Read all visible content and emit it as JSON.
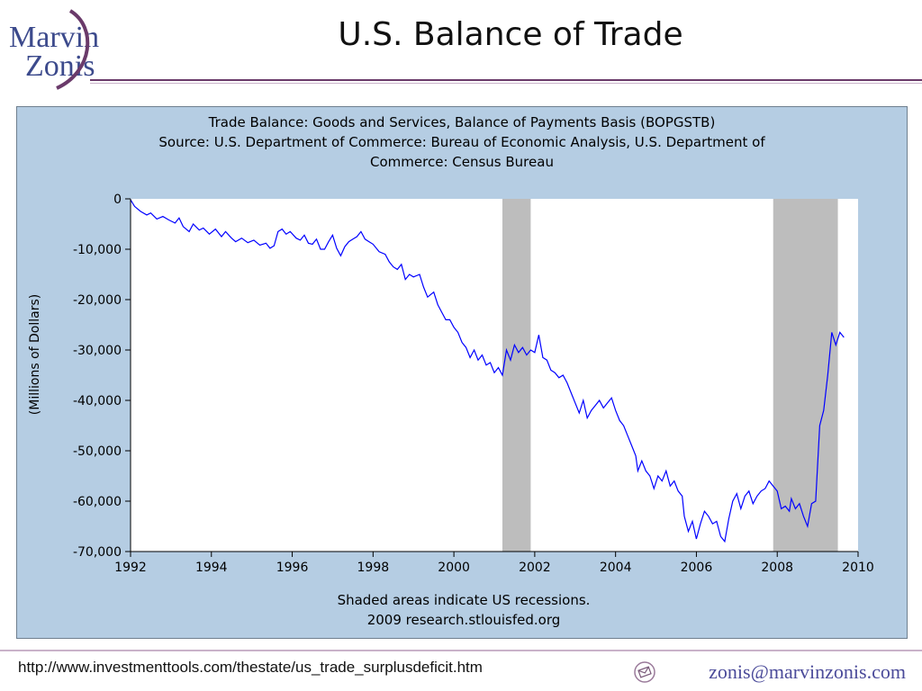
{
  "slide": {
    "title": "U.S. Balance of Trade",
    "logo_line1": "Marvin",
    "logo_line2": "Zonis",
    "footer_url": "http://www.investmenttools.com/thestate/us_trade_surplusdeficit.htm",
    "footer_email": "zonis@marvinzonis.com"
  },
  "colors": {
    "chart_bg": "#b5cde3",
    "plot_bg": "#ffffff",
    "recession": "#bdbdbd",
    "series": "#0000ff",
    "logo_text": "#3c4a8c",
    "accent": "#6a3a6a"
  },
  "chart_data": {
    "type": "line",
    "title_lines": [
      "Trade Balance: Goods and Services, Balance of Payments Basis (BOPGSTB)",
      "Source: U.S. Department of Commerce: Bureau of Economic Analysis, U.S. Department of",
      "Commerce: Census Bureau"
    ],
    "ylabel": "(Millions of Dollars)",
    "note_lines": [
      "Shaded areas indicate US recessions.",
      "2009 research.stlouisfed.org"
    ],
    "xlim": [
      1992,
      2010
    ],
    "ylim": [
      -70000,
      0
    ],
    "x_ticks": [
      1992,
      1994,
      1996,
      1998,
      2000,
      2002,
      2004,
      2006,
      2008,
      2010
    ],
    "x_tick_labels": [
      "1992",
      "1994",
      "1996",
      "1998",
      "2000",
      "2002",
      "2004",
      "2006",
      "2008",
      "2010"
    ],
    "y_ticks": [
      0,
      -10000,
      -20000,
      -30000,
      -40000,
      -50000,
      -60000,
      -70000
    ],
    "y_tick_labels": [
      "0",
      "-10,000",
      "-20,000",
      "-30,000",
      "-40,000",
      "-50,000",
      "-60,000",
      "-70,000"
    ],
    "recessions": [
      [
        2001.2,
        2001.9
      ],
      [
        2007.9,
        2009.5
      ]
    ],
    "series": [
      {
        "points": [
          [
            1992.0,
            -200
          ],
          [
            1992.1,
            -1500
          ],
          [
            1992.25,
            -2500
          ],
          [
            1992.4,
            -3200
          ],
          [
            1992.5,
            -2800
          ],
          [
            1992.65,
            -4000
          ],
          [
            1992.8,
            -3500
          ],
          [
            1992.95,
            -4200
          ],
          [
            1993.1,
            -4800
          ],
          [
            1993.2,
            -3800
          ],
          [
            1993.3,
            -5500
          ],
          [
            1993.45,
            -6500
          ],
          [
            1993.55,
            -5000
          ],
          [
            1993.7,
            -6200
          ],
          [
            1993.8,
            -5800
          ],
          [
            1993.95,
            -7000
          ],
          [
            1994.1,
            -6000
          ],
          [
            1994.25,
            -7500
          ],
          [
            1994.35,
            -6500
          ],
          [
            1994.5,
            -7800
          ],
          [
            1994.6,
            -8500
          ],
          [
            1994.75,
            -7800
          ],
          [
            1994.9,
            -8700
          ],
          [
            1995.05,
            -8200
          ],
          [
            1995.2,
            -9200
          ],
          [
            1995.35,
            -8800
          ],
          [
            1995.45,
            -9800
          ],
          [
            1995.55,
            -9300
          ],
          [
            1995.65,
            -6500
          ],
          [
            1995.75,
            -6000
          ],
          [
            1995.85,
            -7000
          ],
          [
            1995.95,
            -6500
          ],
          [
            1996.1,
            -7800
          ],
          [
            1996.2,
            -8200
          ],
          [
            1996.3,
            -7200
          ],
          [
            1996.4,
            -8800
          ],
          [
            1996.5,
            -9000
          ],
          [
            1996.6,
            -8000
          ],
          [
            1996.7,
            -10000
          ],
          [
            1996.8,
            -10000
          ],
          [
            1996.9,
            -8500
          ],
          [
            1997.0,
            -7200
          ],
          [
            1997.1,
            -9800
          ],
          [
            1997.2,
            -11300
          ],
          [
            1997.3,
            -9500
          ],
          [
            1997.4,
            -8500
          ],
          [
            1997.5,
            -8000
          ],
          [
            1997.6,
            -7500
          ],
          [
            1997.7,
            -6500
          ],
          [
            1997.8,
            -8000
          ],
          [
            1997.9,
            -8500
          ],
          [
            1998.0,
            -9000
          ],
          [
            1998.15,
            -10500
          ],
          [
            1998.3,
            -11000
          ],
          [
            1998.4,
            -12500
          ],
          [
            1998.5,
            -13500
          ],
          [
            1998.6,
            -14000
          ],
          [
            1998.7,
            -13000
          ],
          [
            1998.8,
            -16000
          ],
          [
            1998.9,
            -15000
          ],
          [
            1999.0,
            -15500
          ],
          [
            1999.15,
            -15000
          ],
          [
            1999.25,
            -17500
          ],
          [
            1999.35,
            -19500
          ],
          [
            1999.5,
            -18500
          ],
          [
            1999.6,
            -21000
          ],
          [
            1999.7,
            -22500
          ],
          [
            1999.8,
            -24000
          ],
          [
            1999.9,
            -24000
          ],
          [
            2000.0,
            -25500
          ],
          [
            2000.1,
            -26500
          ],
          [
            2000.2,
            -28500
          ],
          [
            2000.3,
            -29500
          ],
          [
            2000.4,
            -31500
          ],
          [
            2000.5,
            -30000
          ],
          [
            2000.6,
            -32000
          ],
          [
            2000.7,
            -31000
          ],
          [
            2000.8,
            -33000
          ],
          [
            2000.9,
            -32500
          ],
          [
            2001.0,
            -34500
          ],
          [
            2001.1,
            -33500
          ],
          [
            2001.2,
            -35000
          ],
          [
            2001.3,
            -30000
          ],
          [
            2001.4,
            -32000
          ],
          [
            2001.5,
            -29000
          ],
          [
            2001.6,
            -30500
          ],
          [
            2001.7,
            -29500
          ],
          [
            2001.8,
            -31000
          ],
          [
            2001.9,
            -30000
          ],
          [
            2002.0,
            -30500
          ],
          [
            2002.1,
            -27000
          ],
          [
            2002.2,
            -31500
          ],
          [
            2002.3,
            -32000
          ],
          [
            2002.4,
            -34000
          ],
          [
            2002.5,
            -34500
          ],
          [
            2002.6,
            -35500
          ],
          [
            2002.7,
            -35000
          ],
          [
            2002.8,
            -36500
          ],
          [
            2002.9,
            -38500
          ],
          [
            2003.0,
            -40500
          ],
          [
            2003.1,
            -42500
          ],
          [
            2003.2,
            -40000
          ],
          [
            2003.3,
            -43500
          ],
          [
            2003.4,
            -42000
          ],
          [
            2003.5,
            -41000
          ],
          [
            2003.6,
            -40000
          ],
          [
            2003.7,
            -41500
          ],
          [
            2003.8,
            -40500
          ],
          [
            2003.9,
            -39500
          ],
          [
            2004.0,
            -42000
          ],
          [
            2004.1,
            -44000
          ],
          [
            2004.2,
            -45000
          ],
          [
            2004.3,
            -47000
          ],
          [
            2004.4,
            -49000
          ],
          [
            2004.5,
            -51000
          ],
          [
            2004.55,
            -54000
          ],
          [
            2004.65,
            -52000
          ],
          [
            2004.75,
            -54000
          ],
          [
            2004.85,
            -55000
          ],
          [
            2004.95,
            -57500
          ],
          [
            2005.05,
            -55000
          ],
          [
            2005.15,
            -56000
          ],
          [
            2005.25,
            -54000
          ],
          [
            2005.35,
            -57000
          ],
          [
            2005.45,
            -56000
          ],
          [
            2005.55,
            -58000
          ],
          [
            2005.65,
            -59000
          ],
          [
            2005.7,
            -63000
          ],
          [
            2005.8,
            -66000
          ],
          [
            2005.9,
            -64000
          ],
          [
            2006.0,
            -67500
          ],
          [
            2006.1,
            -64500
          ],
          [
            2006.2,
            -62000
          ],
          [
            2006.3,
            -63000
          ],
          [
            2006.4,
            -64500
          ],
          [
            2006.5,
            -64000
          ],
          [
            2006.6,
            -67000
          ],
          [
            2006.7,
            -68000
          ],
          [
            2006.8,
            -63500
          ],
          [
            2006.9,
            -60000
          ],
          [
            2007.0,
            -58500
          ],
          [
            2007.1,
            -61500
          ],
          [
            2007.2,
            -59000
          ],
          [
            2007.3,
            -58000
          ],
          [
            2007.4,
            -60500
          ],
          [
            2007.5,
            -59000
          ],
          [
            2007.6,
            -58000
          ],
          [
            2007.7,
            -57500
          ],
          [
            2007.8,
            -56000
          ],
          [
            2007.9,
            -57000
          ],
          [
            2008.0,
            -58000
          ],
          [
            2008.1,
            -61500
          ],
          [
            2008.2,
            -61000
          ],
          [
            2008.3,
            -62000
          ],
          [
            2008.35,
            -59500
          ],
          [
            2008.45,
            -61500
          ],
          [
            2008.55,
            -60500
          ],
          [
            2008.65,
            -63000
          ],
          [
            2008.75,
            -65000
          ],
          [
            2008.85,
            -60500
          ],
          [
            2008.95,
            -60000
          ],
          [
            2009.05,
            -45000
          ],
          [
            2009.15,
            -42000
          ],
          [
            2009.25,
            -35000
          ],
          [
            2009.35,
            -26500
          ],
          [
            2009.45,
            -29000
          ],
          [
            2009.55,
            -26500
          ],
          [
            2009.65,
            -27500
          ]
        ]
      }
    ]
  }
}
